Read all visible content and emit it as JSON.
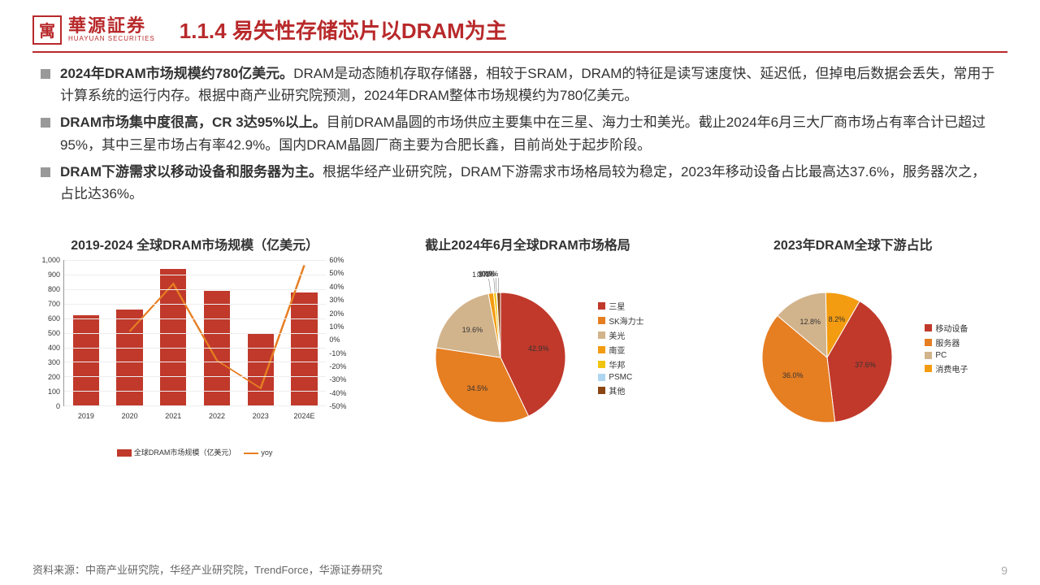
{
  "logo": {
    "cn": "華源証券",
    "en": "HUAYUAN SECURITIES",
    "glyph": "寓"
  },
  "title": "1.1.4 易失性存储芯片以DRAM为主",
  "bullets": [
    {
      "bold": "2024年DRAM市场规模约780亿美元。",
      "rest": "DRAM是动态随机存取存储器，相较于SRAM，DRAM的特征是读写速度快、延迟低，但掉电后数据会丢失，常用于计算系统的运行内存。根据中商产业研究院预测，2024年DRAM整体市场规模约为780亿美元。"
    },
    {
      "bold": "DRAM市场集中度很高，CR 3达95%以上。",
      "rest": "目前DRAM晶圆的市场供应主要集中在三星、海力士和美光。截止2024年6月三大厂商市场占有率合计已超过95%，其中三星市场占有率42.9%。国内DRAM晶圆厂商主要为合肥长鑫，目前尚处于起步阶段。"
    },
    {
      "bold": "DRAM下游需求以移动设备和服务器为主。",
      "rest": "根据华经产业研究院，DRAM下游需求市场格局较为稳定，2023年移动设备占比最高达37.6%，服务器次之，占比达36%。"
    }
  ],
  "chart1": {
    "title": "2019-2024 全球DRAM市场规模（亿美元）",
    "categories": [
      "2019",
      "2020",
      "2021",
      "2022",
      "2023",
      "2024E"
    ],
    "bar_values": [
      620,
      660,
      940,
      790,
      500,
      780
    ],
    "line_values": [
      null,
      6,
      42,
      -16,
      -37,
      56
    ],
    "yl_min": 0,
    "yl_max": 1000,
    "yl_step": 100,
    "yr_min": -50,
    "yr_max": 60,
    "yr_step": 10,
    "bar_color": "#c0392b",
    "line_color": "#e67e22",
    "legend_bar": "全球DRAM市场规模（亿美元）",
    "legend_line": "yoy"
  },
  "chart2": {
    "title": "截止2024年6月全球DRAM市场格局",
    "slices": [
      {
        "label": "三星",
        "value": 42.9,
        "color": "#c0392b",
        "show": "42.9%"
      },
      {
        "label": "SK海力士",
        "value": 34.5,
        "color": "#e67e22",
        "show": "34.5%"
      },
      {
        "label": "美光",
        "value": 19.6,
        "color": "#d2b48c",
        "show": "19.6%"
      },
      {
        "label": "南亚",
        "value": 1.3,
        "color": "#f39c12",
        "show": "1.3%"
      },
      {
        "label": "华邦",
        "value": 0.7,
        "color": "#f1c40f",
        "show": "0.7%"
      },
      {
        "label": "PSMC",
        "value": 0.1,
        "color": "#aed6f1",
        "show": "0.1%"
      },
      {
        "label": "其他",
        "value": 0.9,
        "color": "#8b4513",
        "show": "0.9%"
      }
    ]
  },
  "chart3": {
    "title": "2023年DRAM全球下游占比",
    "slices": [
      {
        "label": "移动设备",
        "value": 37.6,
        "color": "#c0392b",
        "show": "37.6%"
      },
      {
        "label": "服务器",
        "value": 36.0,
        "color": "#e67e22",
        "show": "36.0%"
      },
      {
        "label": "PC",
        "value": 12.8,
        "color": "#d2b48c",
        "show": "12.8%"
      },
      {
        "label": "消费电子",
        "value": 8.2,
        "color": "#f39c12",
        "show": "8.2%"
      }
    ]
  },
  "source": "资料来源：中商产业研究院，华经产业研究院，TrendForce，华源证券研究",
  "page": "9"
}
